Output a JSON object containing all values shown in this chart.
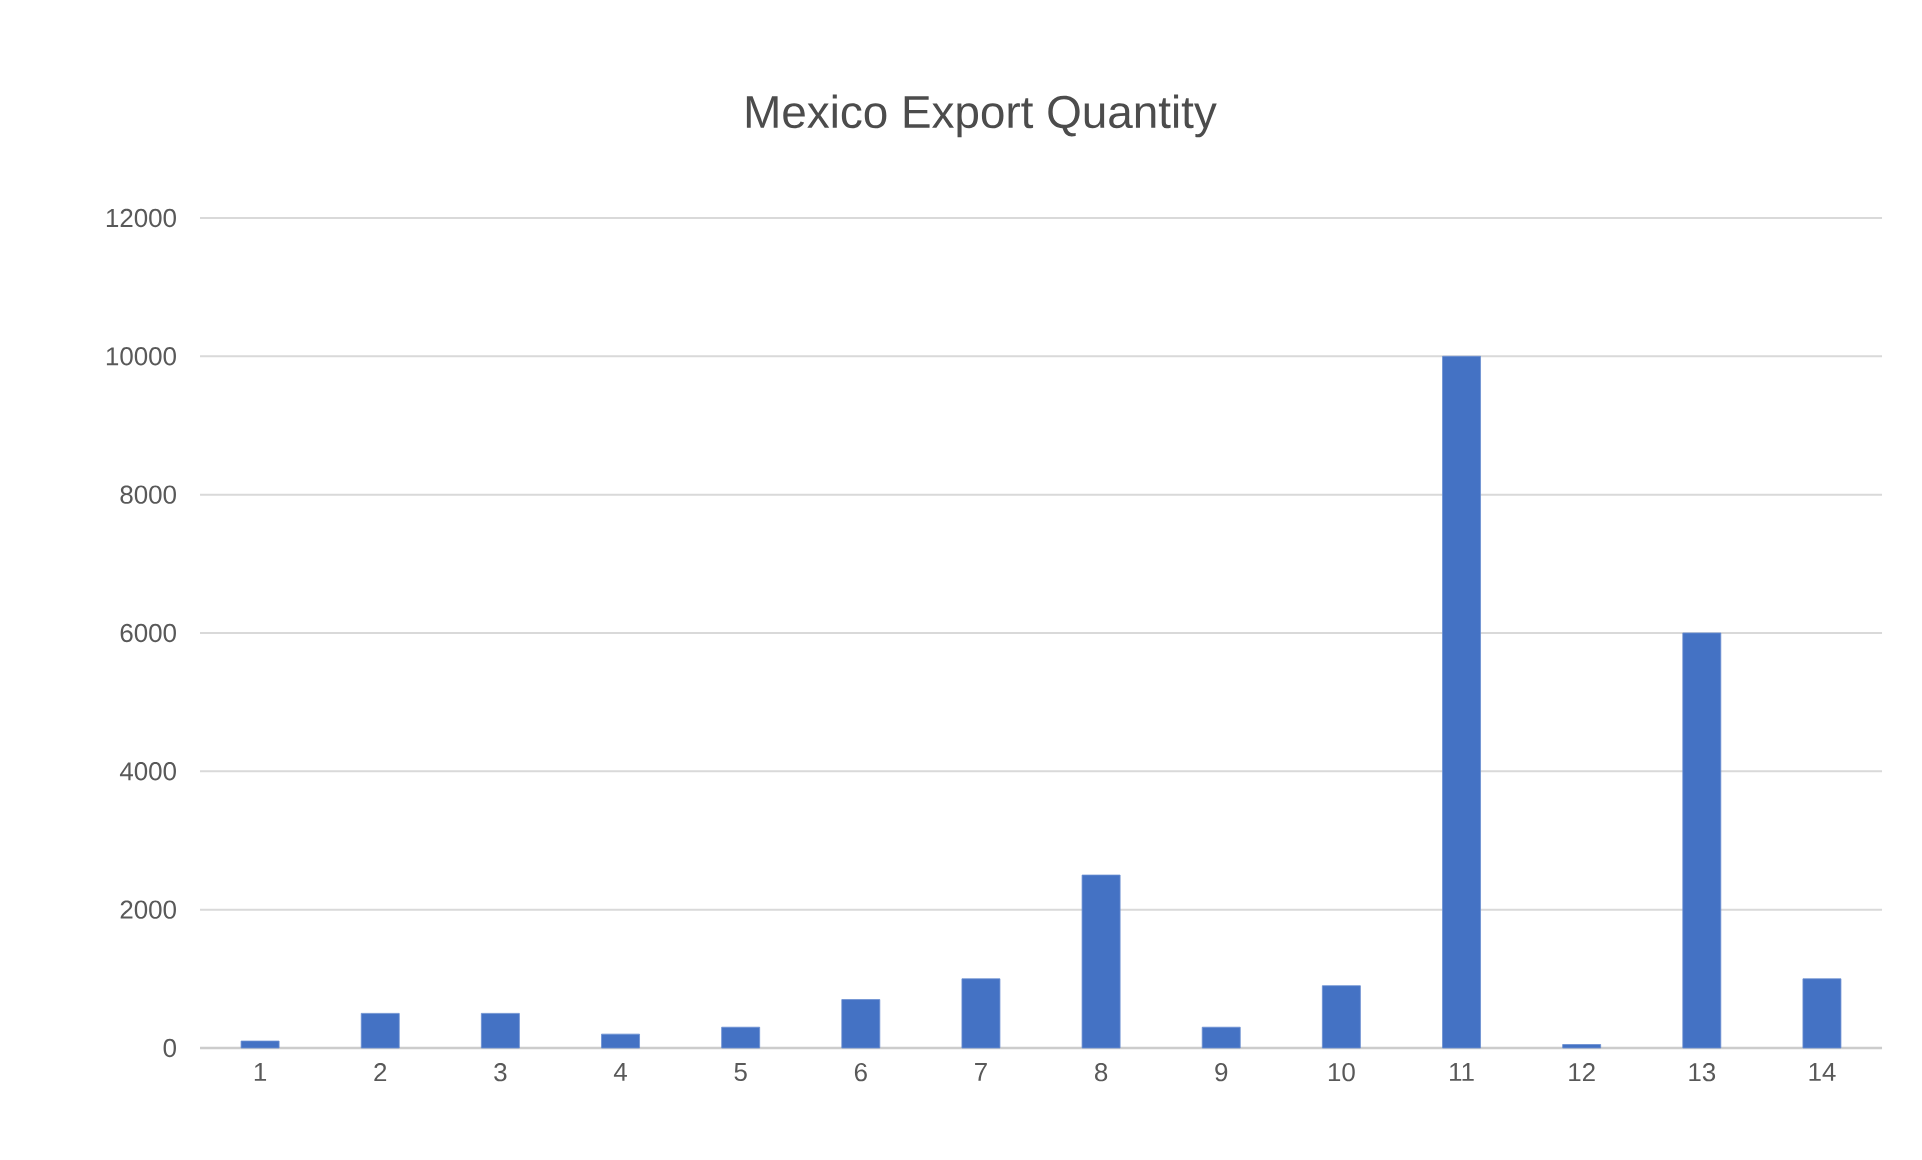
{
  "chart_data": {
    "type": "bar",
    "title": "Mexico Export Quantity",
    "categories": [
      "1",
      "2",
      "3",
      "4",
      "5",
      "6",
      "7",
      "8",
      "9",
      "10",
      "11",
      "12",
      "13",
      "14"
    ],
    "values": [
      100,
      500,
      500,
      200,
      300,
      700,
      1000,
      2500,
      300,
      900,
      10000,
      50,
      6000,
      1000
    ],
    "color": "#4472c4",
    "ylim": [
      0,
      12000
    ],
    "yticks": [
      0,
      2000,
      4000,
      6000,
      8000,
      10000,
      12000
    ],
    "grid": "y"
  }
}
